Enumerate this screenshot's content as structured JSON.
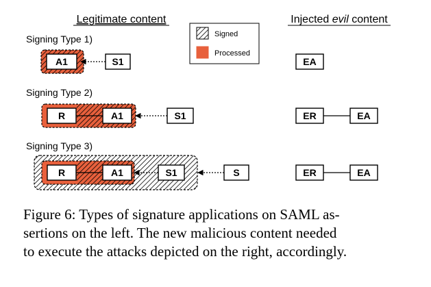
{
  "headers": {
    "legitimate": "Legitimate content",
    "injected_prefix": "Injected ",
    "injected_evil": "evil",
    "injected_suffix": " content"
  },
  "legend": {
    "signed": "Signed",
    "processed": "Processed"
  },
  "rows": [
    {
      "label": "Signing Type 1)",
      "legit": [
        "A1",
        "S1"
      ],
      "evil": [
        "EA"
      ]
    },
    {
      "label": "Signing Type 2)",
      "legit": [
        "R",
        "A1",
        "S1"
      ],
      "evil": [
        "ER",
        "EA"
      ]
    },
    {
      "label": "Signing Type 3)",
      "legit": [
        "R",
        "A1",
        "S1",
        "S"
      ],
      "evil": [
        "ER",
        "EA"
      ]
    }
  ],
  "colors": {
    "processed": "#e8603c",
    "hatch_line": "#000000",
    "box_border": "#000000"
  },
  "caption": [
    "Figure 6: Types of signature applications on SAML as-",
    "sertions on the left.  The new malicious content needed",
    "to execute the attacks depicted on the right, accordingly."
  ]
}
